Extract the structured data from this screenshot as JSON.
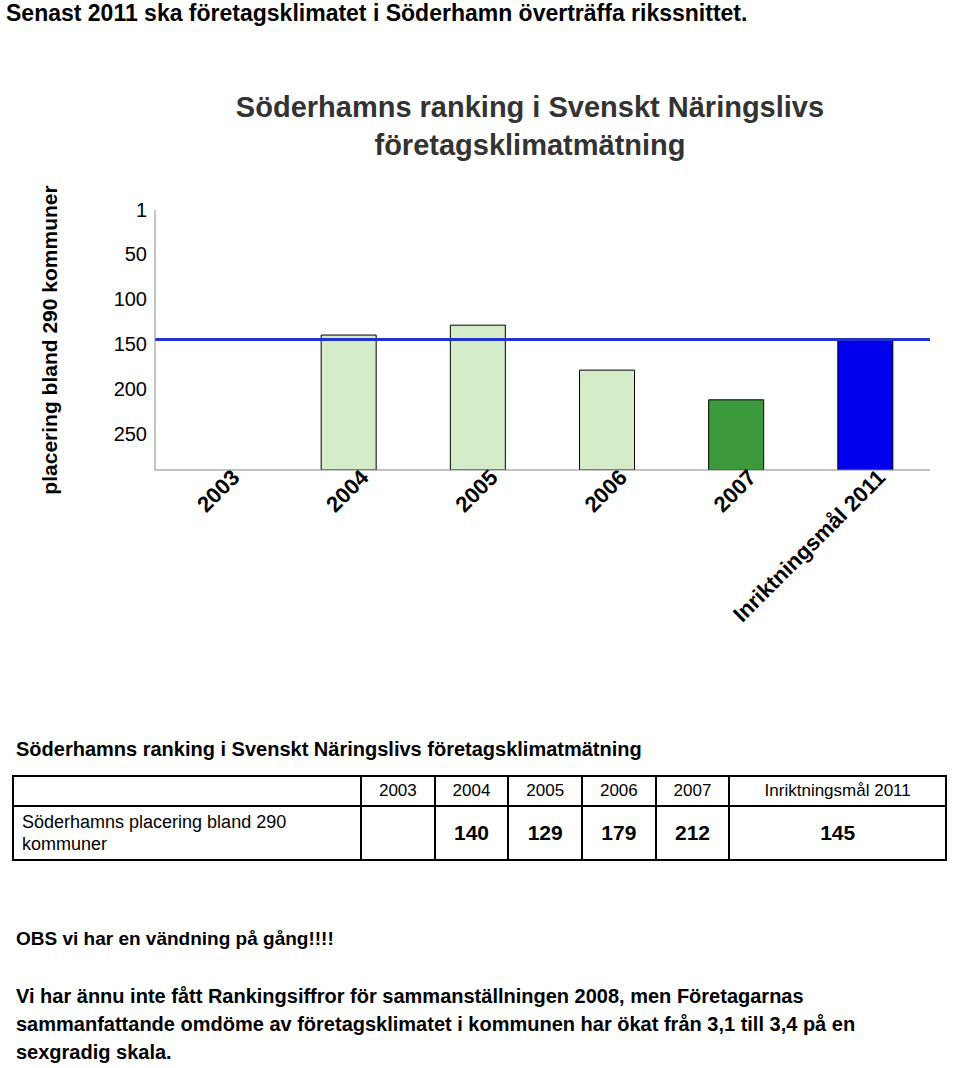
{
  "header": {
    "title": "Senast 2011 ska företagsklimatet i Söderhamn överträffa rikssnittet."
  },
  "chart_data": {
    "type": "bar",
    "title": "Söderhamns ranking i Svenskt Näringslivs företagsklimatmätning",
    "y_label": "placering bland 290 kommuner",
    "categories": [
      "2003",
      "2004",
      "2005",
      "2006",
      "2007",
      "Inriktningsmål 2011"
    ],
    "values": [
      null,
      140,
      129,
      179,
      212,
      145
    ],
    "colors": [
      "#d4ecc8",
      "#d4ecc8",
      "#d4ecc8",
      "#d4ecc8",
      "#3c9a3c",
      "#0000ee"
    ],
    "ylim": [
      290,
      1
    ],
    "yticks": [
      1,
      50,
      100,
      150,
      200,
      250
    ],
    "grid": false
  },
  "table": {
    "title": "Söderhamns ranking i Svenskt Näringslivs företagsklimatmätning",
    "row_label": "Söderhamns placering bland 290 kommuner"
  },
  "notes": [
    "OBS vi har en vändning på gång!!!!",
    "Vi har ännu inte fått Rankingsiffror för sammanställningen 2008, men Företagarnas sammanfattande omdöme av företagsklimatet i kommunen har ökat från 3,1 till 3,4 på en sexgradig skala."
  ]
}
